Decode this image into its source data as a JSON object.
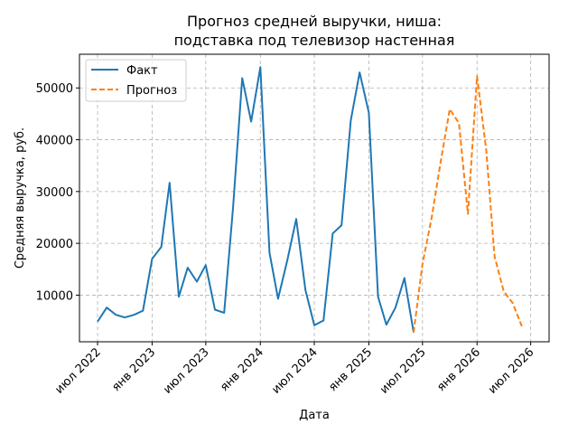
{
  "chart_data": {
    "type": "line",
    "title_line1": "Прогноз средней выручки, ниша:",
    "title_line2": "подставка под телевизор настенная",
    "xlabel": "Дата",
    "ylabel": "Средняя выручка, руб.",
    "x_ticks": [
      "2022-07-01",
      "2023-01-01",
      "2023-07-01",
      "2024-01-01",
      "2024-07-01",
      "2025-01-01",
      "2025-07-01",
      "2026-01-01",
      "2026-07-01"
    ],
    "x_tick_labels": [
      "июл 2022",
      "янв 2023",
      "июл 2023",
      "янв 2024",
      "июл 2024",
      "янв 2025",
      "июл 2025",
      "янв 2026",
      "июл 2026"
    ],
    "y_ticks": [
      10000,
      20000,
      30000,
      40000,
      50000
    ],
    "y_tick_labels": [
      "10000",
      "20000",
      "30000",
      "40000",
      "50000"
    ],
    "xlim": [
      "2022-05-01",
      "2026-09-01"
    ],
    "ylim": [
      1000,
      56500
    ],
    "grid": true,
    "legend_position": "top-left",
    "series": [
      {
        "name": "Факт",
        "color": "#1f77b4",
        "style": "solid",
        "points": [
          {
            "x": "2022-07-01",
            "y": 4900
          },
          {
            "x": "2022-08-01",
            "y": 7600
          },
          {
            "x": "2022-09-01",
            "y": 6200
          },
          {
            "x": "2022-10-01",
            "y": 5700
          },
          {
            "x": "2022-11-01",
            "y": 6200
          },
          {
            "x": "2022-12-01",
            "y": 7000
          },
          {
            "x": "2023-01-01",
            "y": 17000
          },
          {
            "x": "2023-02-01",
            "y": 19300
          },
          {
            "x": "2023-03-01",
            "y": 31700
          },
          {
            "x": "2023-04-01",
            "y": 9700
          },
          {
            "x": "2023-05-01",
            "y": 15300
          },
          {
            "x": "2023-06-01",
            "y": 12600
          },
          {
            "x": "2023-07-01",
            "y": 15800
          },
          {
            "x": "2023-08-01",
            "y": 7200
          },
          {
            "x": "2023-09-01",
            "y": 6600
          },
          {
            "x": "2023-10-01",
            "y": 27000
          },
          {
            "x": "2023-11-01",
            "y": 51900
          },
          {
            "x": "2023-12-01",
            "y": 43500
          },
          {
            "x": "2024-01-01",
            "y": 54000
          },
          {
            "x": "2024-02-01",
            "y": 18200
          },
          {
            "x": "2024-03-01",
            "y": 9300
          },
          {
            "x": "2024-04-01",
            "y": 16700
          },
          {
            "x": "2024-05-01",
            "y": 24700
          },
          {
            "x": "2024-06-01",
            "y": 11000
          },
          {
            "x": "2024-07-01",
            "y": 4200
          },
          {
            "x": "2024-08-01",
            "y": 5100
          },
          {
            "x": "2024-09-01",
            "y": 21900
          },
          {
            "x": "2024-10-01",
            "y": 23500
          },
          {
            "x": "2024-11-01",
            "y": 43700
          },
          {
            "x": "2024-12-01",
            "y": 53000
          },
          {
            "x": "2025-01-01",
            "y": 45200
          },
          {
            "x": "2025-02-01",
            "y": 9700
          },
          {
            "x": "2025-03-01",
            "y": 4300
          },
          {
            "x": "2025-04-01",
            "y": 7600
          },
          {
            "x": "2025-05-01",
            "y": 13300
          },
          {
            "x": "2025-06-01",
            "y": 2800
          }
        ]
      },
      {
        "name": "Прогноз",
        "color": "#ff7f0e",
        "style": "dashed",
        "points": [
          {
            "x": "2025-06-01",
            "y": 2800
          },
          {
            "x": "2025-07-01",
            "y": 16000
          },
          {
            "x": "2025-08-01",
            "y": 25000
          },
          {
            "x": "2025-09-01",
            "y": 36000
          },
          {
            "x": "2025-10-01",
            "y": 45900
          },
          {
            "x": "2025-11-01",
            "y": 43200
          },
          {
            "x": "2025-12-01",
            "y": 25700
          },
          {
            "x": "2026-01-01",
            "y": 52300
          },
          {
            "x": "2026-02-01",
            "y": 38000
          },
          {
            "x": "2026-03-01",
            "y": 17500
          },
          {
            "x": "2026-04-01",
            "y": 10700
          },
          {
            "x": "2026-05-01",
            "y": 8500
          },
          {
            "x": "2026-06-01",
            "y": 4000
          }
        ]
      }
    ]
  }
}
